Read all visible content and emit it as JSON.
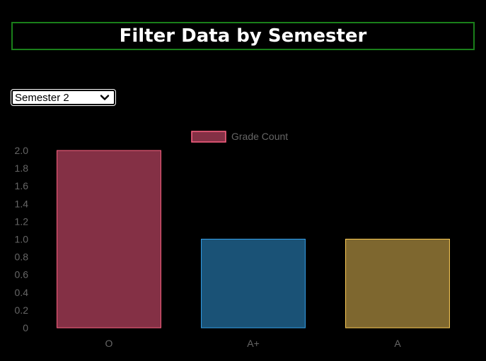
{
  "header": {
    "title": "Filter Data by Semester"
  },
  "filter": {
    "selected": "Semester 2"
  },
  "chart_data": {
    "type": "bar",
    "categories": [
      "O",
      "A+",
      "A"
    ],
    "series": [
      {
        "name": "Grade Count",
        "values": [
          2,
          1,
          1
        ]
      }
    ],
    "ylim": [
      0,
      2
    ],
    "yticks": [
      "0",
      "0.2",
      "0.4",
      "0.6",
      "0.8",
      "1.0",
      "1.2",
      "1.4",
      "1.6",
      "1.8",
      "2.0"
    ],
    "ytick_values": [
      0,
      0.2,
      0.4,
      0.6,
      0.8,
      1.0,
      1.2,
      1.4,
      1.6,
      1.8,
      2.0
    ],
    "bar_fill_colors": [
      "#843045",
      "#1a5276",
      "#7e672f"
    ],
    "bar_border_colors": [
      "#ff6384",
      "#36a2eb",
      "#ffce56"
    ],
    "legend": {
      "position": "top",
      "fill": "#843045",
      "border": "#ff6384"
    },
    "grid": false
  }
}
